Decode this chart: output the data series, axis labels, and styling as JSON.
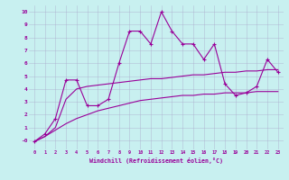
{
  "xlabel": "Windchill (Refroidissement éolien,°C)",
  "background_color": "#c8f0f0",
  "line_color": "#990099",
  "grid_color": "#aaaacc",
  "xlim": [
    -0.5,
    23.5
  ],
  "ylim": [
    -0.7,
    10.5
  ],
  "xticks": [
    0,
    1,
    2,
    3,
    4,
    5,
    6,
    7,
    8,
    9,
    10,
    11,
    12,
    13,
    14,
    15,
    16,
    17,
    18,
    19,
    20,
    21,
    22,
    23
  ],
  "yticks": [
    0,
    1,
    2,
    3,
    4,
    5,
    6,
    7,
    8,
    9,
    10
  ],
  "series1_x": [
    0,
    1,
    2,
    3,
    4,
    5,
    6,
    7,
    8,
    9,
    10,
    11,
    12,
    13,
    14,
    15,
    16,
    17,
    18,
    19,
    20,
    21,
    22,
    23
  ],
  "series1_y": [
    -0.1,
    0.5,
    1.7,
    4.7,
    4.7,
    2.7,
    2.7,
    3.2,
    6.0,
    8.5,
    8.5,
    7.5,
    10.0,
    8.5,
    7.5,
    7.5,
    6.3,
    7.5,
    4.4,
    3.5,
    3.7,
    4.2,
    6.3,
    5.3
  ],
  "series2_x": [
    0,
    1,
    2,
    3,
    4,
    5,
    6,
    7,
    8,
    9,
    10,
    11,
    12,
    13,
    14,
    15,
    16,
    17,
    18,
    19,
    20,
    21,
    22,
    23
  ],
  "series2_y": [
    -0.1,
    0.3,
    1.0,
    3.2,
    4.0,
    4.2,
    4.3,
    4.4,
    4.5,
    4.6,
    4.7,
    4.8,
    4.8,
    4.9,
    5.0,
    5.1,
    5.1,
    5.2,
    5.3,
    5.3,
    5.4,
    5.4,
    5.5,
    5.5
  ],
  "series3_x": [
    0,
    1,
    2,
    3,
    4,
    5,
    6,
    7,
    8,
    9,
    10,
    11,
    12,
    13,
    14,
    15,
    16,
    17,
    18,
    19,
    20,
    21,
    22,
    23
  ],
  "series3_y": [
    -0.1,
    0.3,
    0.8,
    1.3,
    1.7,
    2.0,
    2.3,
    2.5,
    2.7,
    2.9,
    3.1,
    3.2,
    3.3,
    3.4,
    3.5,
    3.5,
    3.6,
    3.6,
    3.7,
    3.7,
    3.7,
    3.8,
    3.8,
    3.8
  ]
}
